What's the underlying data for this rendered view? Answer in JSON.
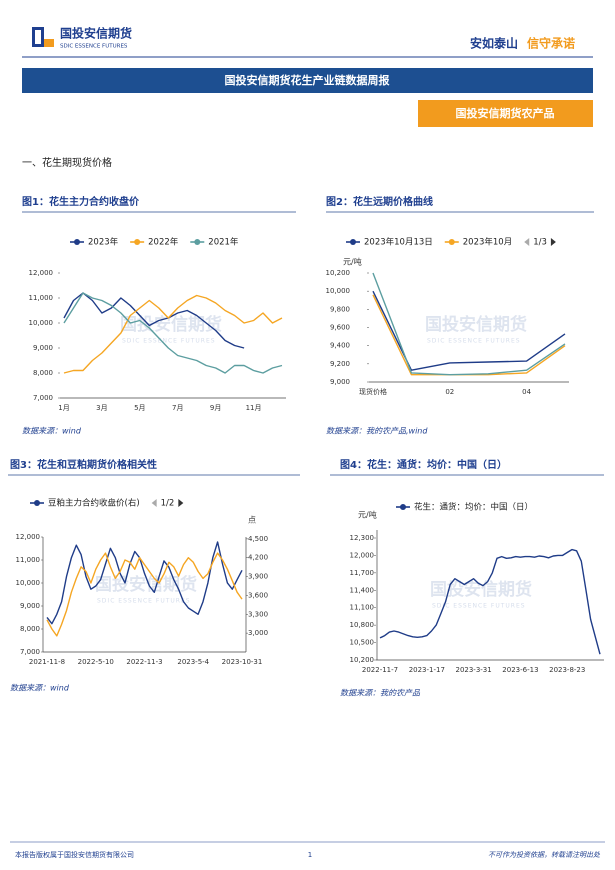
{
  "header": {
    "logo_name": "国投安信期货",
    "logo_sub": "SDIC ESSENCE FUTURES",
    "slogan_a": "安如泰山",
    "slogan_b": "信守承诺"
  },
  "banner": "国投安信期货花生产业链数据周报",
  "subbanner": "国投安信期货农产品",
  "section": "一、花生期现货价格",
  "watermark": {
    "name": "国投安信期货",
    "sub": "SDIC ESSENCE FUTURES"
  },
  "chart_data": [
    {
      "type": "line",
      "title": "图1：花生主力合约收盘价",
      "source": "数据来源：wind",
      "categories": [
        "1月",
        null,
        null,
        null,
        "3月",
        null,
        null,
        null,
        "5月",
        null,
        null,
        null,
        "7月",
        null,
        null,
        null,
        "9月",
        null,
        null,
        null,
        "11月",
        null,
        null,
        null
      ],
      "series": [
        {
          "name": "2023年",
          "color": "#1f3c88",
          "values": [
            10200,
            10900,
            11200,
            10900,
            10400,
            10600,
            11000,
            10700,
            10300,
            9900,
            10100,
            10200,
            10400,
            10500,
            10300,
            10000,
            9700,
            9300,
            9100,
            9000,
            null,
            null,
            null,
            null
          ]
        },
        {
          "name": "2022年",
          "color": "#f5a623",
          "values": [
            8000,
            8100,
            8100,
            8500,
            8800,
            9200,
            9600,
            10300,
            10600,
            10900,
            10600,
            10200,
            10600,
            10900,
            11100,
            11000,
            10800,
            10500,
            10300,
            10000,
            10100,
            10400,
            10000,
            10200
          ]
        },
        {
          "name": "2021年",
          "color": "#5c9ea0",
          "values": [
            10000,
            10600,
            11200,
            11000,
            10900,
            10700,
            10400,
            10000,
            10100,
            9800,
            9400,
            9000,
            8700,
            8600,
            8500,
            8300,
            8200,
            8000,
            8300,
            8300,
            8100,
            8000,
            8200,
            8300
          ]
        }
      ],
      "ylim": [
        7000,
        12000
      ],
      "yticks": [
        {
          "value": 7000,
          "label": "7,000"
        },
        {
          "value": 8000,
          "label": "8,000"
        },
        {
          "value": 9000,
          "label": "9,000"
        },
        {
          "value": 10000,
          "label": "10,000"
        },
        {
          "value": 11000,
          "label": "11,000"
        },
        {
          "value": 12000,
          "label": "12,000"
        }
      ]
    },
    {
      "type": "line",
      "title": "图2：花生远期价格曲线",
      "source": "数据来源：我的农产品,wind",
      "y_unit": "元/吨",
      "legend_page": "1/3",
      "categories": [
        "现货价格",
        null,
        "02",
        null,
        "04",
        null
      ],
      "series": [
        {
          "name": "2023年10月13日",
          "color": "#1f3c88",
          "values": [
            10000,
            9130,
            9210,
            9220,
            9230,
            9530
          ]
        },
        {
          "name": "2023年10月",
          "color": "#f5a623",
          "values": [
            9960,
            9080,
            9080,
            9080,
            9100,
            9400
          ]
        },
        {
          "color": "#5c9ea0",
          "values": [
            10200,
            9100,
            9080,
            9090,
            9130,
            9420
          ]
        }
      ],
      "ylim": [
        9000,
        10200
      ],
      "yticks": [
        {
          "value": 9000,
          "label": "9,000"
        },
        {
          "value": 9200,
          "label": "9,200"
        },
        {
          "value": 9400,
          "label": "9,400"
        },
        {
          "value": 9600,
          "label": "9,600"
        },
        {
          "value": 9800,
          "label": "9,800"
        },
        {
          "value": 10000,
          "label": "10,000"
        },
        {
          "value": 10200,
          "label": "10,200"
        }
      ]
    },
    {
      "type": "line",
      "title": "图3：花生和豆粕期货价格相关性",
      "source": "数据来源：wind",
      "y2_unit": "点",
      "legend_page": "1/2",
      "categories": [
        "2021-11-8",
        null,
        null,
        null,
        null,
        null,
        null,
        null,
        null,
        null,
        "2022-5-10",
        null,
        null,
        null,
        null,
        null,
        null,
        null,
        null,
        null,
        "2022-11-3",
        null,
        null,
        null,
        null,
        null,
        null,
        null,
        null,
        null,
        "2023-5-4",
        null,
        null,
        null,
        null,
        null,
        null,
        null,
        null,
        null,
        "2023-10-31"
      ],
      "series": [
        {
          "name": "豆粕主力合约收盘价(右)",
          "color": "#1f3c88",
          "axis": "y2",
          "values": [
            3250,
            3150,
            3300,
            3500,
            3900,
            4200,
            4400,
            4250,
            3900,
            3700,
            3750,
            3850,
            4100,
            4350,
            4200,
            3950,
            3800,
            4100,
            4300,
            4200,
            3950,
            3750,
            3650,
            3900,
            4150,
            4050,
            3850,
            3700,
            3500,
            3400,
            3350,
            3300,
            3500,
            3800,
            4200,
            4450,
            4100,
            3800,
            3700,
            3850,
            4000
          ]
        },
        {
          "color": "#f5a623",
          "values": [
            8400,
            8000,
            7700,
            8200,
            8800,
            9600,
            10200,
            10700,
            10500,
            10000,
            10600,
            11000,
            11300,
            10700,
            10200,
            10500,
            11000,
            10900,
            10600,
            11100,
            10800,
            10500,
            10200,
            10000,
            10400,
            10900,
            10700,
            10300,
            10800,
            11100,
            10900,
            10500,
            10200,
            10400,
            10900,
            11300,
            11000,
            10600,
            10100,
            9600,
            9300
          ]
        }
      ],
      "ylim": [
        7000,
        12000
      ],
      "yticks": [
        {
          "value": 7000,
          "label": "7,000"
        },
        {
          "value": 8000,
          "label": "8,000"
        },
        {
          "value": 9000,
          "label": "9,000"
        },
        {
          "value": 10000,
          "label": "10,000"
        },
        {
          "value": 11000,
          "label": "11,000"
        },
        {
          "value": 12000,
          "label": "12,000"
        }
      ],
      "y2lim": [
        2700,
        4530
      ],
      "y2ticks": [
        {
          "value": 3000,
          "label": "3,000"
        },
        {
          "value": 3300,
          "label": "3,300"
        },
        {
          "value": 3600,
          "label": "3,600"
        },
        {
          "value": 3900,
          "label": "3,900"
        },
        {
          "value": 4200,
          "label": "4,200"
        },
        {
          "value": 4500,
          "label": "4,500"
        }
      ]
    },
    {
      "type": "line",
      "title": "图4：花生：通货：均价：中国（日）",
      "source": "数据来源：我的农产品",
      "y_unit": "元/吨",
      "categories": [
        "2022-11-7",
        null,
        null,
        null,
        null,
        null,
        null,
        null,
        null,
        null,
        "2023-1-17",
        null,
        null,
        null,
        null,
        null,
        null,
        null,
        null,
        null,
        "2023-3-31",
        null,
        null,
        null,
        null,
        null,
        null,
        null,
        null,
        null,
        "2023-6-13",
        null,
        null,
        null,
        null,
        null,
        null,
        null,
        null,
        null,
        "2023-8-23",
        null,
        null,
        null,
        null,
        null,
        null,
        null
      ],
      "series": [
        {
          "name": "花生：通货：均价：中国（日）",
          "color": "#1f3c88",
          "values": [
            10580,
            10620,
            10680,
            10700,
            10680,
            10650,
            10620,
            10600,
            10590,
            10600,
            10620,
            10700,
            10800,
            11000,
            11200,
            11500,
            11600,
            11550,
            11500,
            11550,
            11600,
            11520,
            11480,
            11550,
            11700,
            11950,
            11980,
            11950,
            11960,
            11980,
            11970,
            11980,
            11980,
            11970,
            11990,
            11980,
            11960,
            11990,
            12000,
            12000,
            12050,
            12100,
            12080,
            11900,
            11400,
            10900,
            10600,
            10300
          ]
        }
      ],
      "ylim": [
        10200,
        12300
      ],
      "yticks": [
        {
          "value": 10200,
          "label": "10,200"
        },
        {
          "value": 10500,
          "label": "10,500"
        },
        {
          "value": 10800,
          "label": "10,800"
        },
        {
          "value": 11100,
          "label": "11,100"
        },
        {
          "value": 11400,
          "label": "11,400"
        },
        {
          "value": 11700,
          "label": "11,700"
        },
        {
          "value": 12000,
          "label": "12,000"
        },
        {
          "value": 12300,
          "label": "12,300"
        }
      ]
    }
  ],
  "footer": {
    "left": "本报告版权属于国投安信期货有限公司",
    "page": "1",
    "right": "不可作为投资依据，转载请注明出处"
  }
}
